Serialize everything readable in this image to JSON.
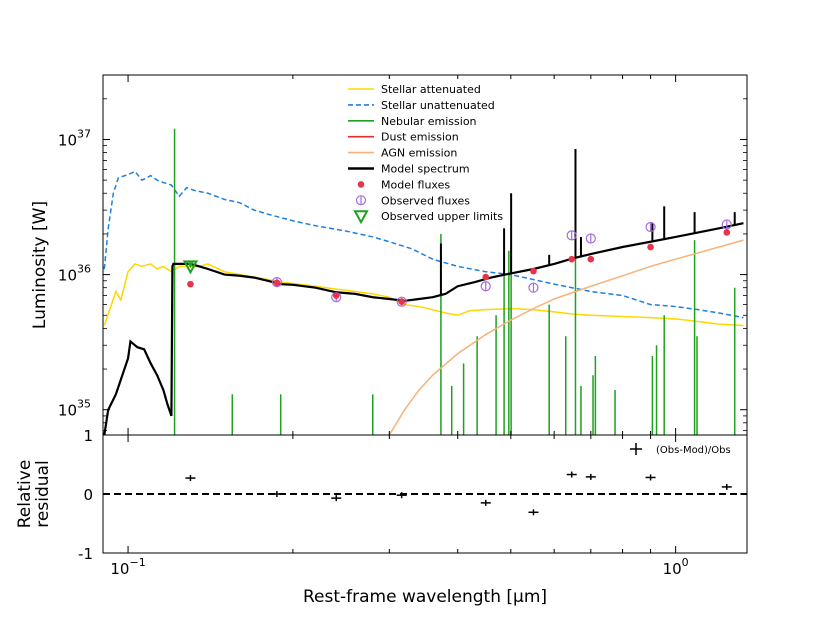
{
  "chart_data": [
    {
      "type": "line",
      "panel": "sed",
      "xscale": "log",
      "yscale": "log",
      "xlim": [
        0.09,
        1.35
      ],
      "ylim": [
        6.5e+34,
        3e+37
      ],
      "ylabel": "Luminosity [W]",
      "yticks": [
        {
          "value": 1e+35,
          "base": "10",
          "exp": "35"
        },
        {
          "value": 1e+36,
          "base": "10",
          "exp": "36"
        },
        {
          "value": 1e+37,
          "base": "10",
          "exp": "37"
        }
      ],
      "legend_position": "top-center",
      "legend": [
        {
          "label": "Stellar attenuated",
          "color": "#ffd700",
          "style": "solid"
        },
        {
          "label": "Stellar unattenuated",
          "color": "#1e7fe0",
          "style": "dashed"
        },
        {
          "label": "Nebular emission",
          "color": "#1fa01f",
          "style": "solid"
        },
        {
          "label": "Dust emission",
          "color": "#e82a2a",
          "style": "solid"
        },
        {
          "label": "AGN emission",
          "color": "#f7b27a",
          "style": "solid"
        },
        {
          "label": "Model spectrum",
          "color": "#000000",
          "style": "solid"
        },
        {
          "label": "Model fluxes",
          "color": "#e8344a",
          "style": "dot"
        },
        {
          "label": "Observed fluxes",
          "color": "#a46cd8",
          "style": "circle"
        },
        {
          "label": "Observed upper limits",
          "color": "#1fa01f",
          "style": "triangle"
        }
      ],
      "series": [
        {
          "name": "Stellar attenuated",
          "color": "#ffd700",
          "x": [
            0.0905,
            0.093,
            0.095,
            0.097,
            0.1,
            0.103,
            0.106,
            0.11,
            0.113,
            0.116,
            0.12,
            0.124,
            0.13,
            0.135,
            0.14,
            0.15,
            0.16,
            0.17,
            0.18,
            0.19,
            0.2,
            0.22,
            0.24,
            0.26,
            0.28,
            0.3,
            0.32,
            0.34,
            0.36,
            0.38,
            0.4,
            0.42,
            0.45,
            0.5,
            0.55,
            0.6,
            0.65,
            0.7,
            0.8,
            0.9,
            1.0,
            1.1,
            1.2,
            1.33
          ],
          "y": [
            4.2e+35,
            5.8e+35,
            7.5e+35,
            6.5e+35,
            1.05e+36,
            1.2e+36,
            1.15e+36,
            1.2e+36,
            1.1e+36,
            1.15e+36,
            1.05e+36,
            1.15e+36,
            1.15e+36,
            1.15e+36,
            1.2e+36,
            1.05e+36,
            1e+36,
            9.6e+35,
            9.2e+35,
            8.8e+35,
            8.6e+35,
            8.2e+35,
            7.8e+35,
            7.5e+35,
            7.2e+35,
            6.8e+35,
            6e+35,
            5.8e+35,
            5.5e+35,
            5.2e+35,
            5e+35,
            5.4e+35,
            5.5e+35,
            5.6e+35,
            5.5e+35,
            5.3e+35,
            5.1e+35,
            5e+35,
            4.9e+35,
            4.8e+35,
            4.7e+35,
            4.5e+35,
            4.3e+35,
            4.2e+35
          ]
        },
        {
          "name": "Stellar unattenuated",
          "color": "#1e7fe0",
          "x": [
            0.0905,
            0.092,
            0.094,
            0.096,
            0.1,
            0.103,
            0.106,
            0.11,
            0.113,
            0.116,
            0.12,
            0.124,
            0.128,
            0.132,
            0.14,
            0.15,
            0.16,
            0.17,
            0.18,
            0.2,
            0.22,
            0.25,
            0.28,
            0.3,
            0.33,
            0.36,
            0.4,
            0.45,
            0.5,
            0.6,
            0.7,
            0.8,
            0.9,
            1.0,
            1.1,
            1.2,
            1.33
          ],
          "y": [
            1.1e+36,
            2.2e+36,
            4e+36,
            5.2e+36,
            5.5e+36,
            5.8e+36,
            5e+36,
            5.4e+36,
            5e+36,
            4.8e+36,
            4.6e+36,
            3.8e+36,
            4.4e+36,
            4.2e+36,
            4e+36,
            3.6e+36,
            3.4e+36,
            3e+36,
            2.8e+36,
            2.5e+36,
            2.3e+36,
            2.1e+36,
            1.9e+36,
            1.75e+36,
            1.55e+36,
            1.3e+36,
            1.15e+36,
            1.05e+36,
            1e+36,
            8.5e+35,
            7.5e+35,
            7e+35,
            6e+35,
            5.8e+35,
            5.5e+35,
            5.2e+35,
            4.8e+35
          ]
        },
        {
          "name": "AGN emission",
          "color": "#f7b27a",
          "x": [
            0.3,
            0.32,
            0.34,
            0.36,
            0.4,
            0.45,
            0.5,
            0.55,
            0.6,
            0.7,
            0.8,
            0.9,
            1.0,
            1.1,
            1.2,
            1.33
          ],
          "y": [
            6.5e+34,
            1e+35,
            1.4e+35,
            1.8e+35,
            2.6e+35,
            3.6e+35,
            4.6e+35,
            5.6e+35,
            6.6e+35,
            8.2e+35,
            9.8e+35,
            1.15e+36,
            1.3e+36,
            1.45e+36,
            1.6e+36,
            1.8e+36
          ]
        },
        {
          "name": "Model spectrum",
          "color": "#000000",
          "x": [
            0.0905,
            0.092,
            0.095,
            0.1,
            0.101,
            0.104,
            0.107,
            0.11,
            0.113,
            0.116,
            0.118,
            0.12,
            0.1205,
            0.121,
            0.124,
            0.13,
            0.135,
            0.14,
            0.15,
            0.16,
            0.17,
            0.18,
            0.19,
            0.2,
            0.22,
            0.24,
            0.26,
            0.28,
            0.3,
            0.32,
            0.34,
            0.36,
            0.38,
            0.4,
            0.43,
            0.46,
            0.5,
            0.55,
            0.6,
            0.65,
            0.7,
            0.8,
            0.9,
            1.0,
            1.1,
            1.2,
            1.33
          ],
          "y": [
            6.5e+34,
            1e+35,
            1.3e+35,
            2.4e+35,
            3.2e+35,
            2.9e+35,
            2.8e+35,
            2.2e+35,
            1.8e+35,
            1.4e+35,
            1.1e+35,
            9e+34,
            1.15e+36,
            1.2e+36,
            1.2e+36,
            1.2e+36,
            1.15e+36,
            1.1e+36,
            1e+36,
            9.8e+35,
            9.5e+35,
            9e+35,
            8.5e+35,
            8.4e+35,
            8e+35,
            7.4e+35,
            7.2e+35,
            6.8e+35,
            6.6e+35,
            6.4e+35,
            6.6e+35,
            6.8e+35,
            7.2e+35,
            8.2e+35,
            8.8e+35,
            9.5e+35,
            1.02e+36,
            1.1e+36,
            1.2e+36,
            1.32e+36,
            1.42e+36,
            1.6e+36,
            1.75e+36,
            1.9e+36,
            2.05e+36,
            2.2e+36,
            2.4e+36
          ]
        }
      ],
      "nebular_lines": [
        {
          "x": 0.1216,
          "y": 1.2e+37
        },
        {
          "x": 0.155,
          "y": 1.3e+35
        },
        {
          "x": 0.19,
          "y": 1.3e+35
        },
        {
          "x": 0.2798,
          "y": 1.3e+35
        },
        {
          "x": 0.3727,
          "y": 2e+36
        },
        {
          "x": 0.39,
          "y": 1.5e+35
        },
        {
          "x": 0.41,
          "y": 2.2e+35
        },
        {
          "x": 0.434,
          "y": 3.5e+35
        },
        {
          "x": 0.47,
          "y": 5e+35
        },
        {
          "x": 0.4861,
          "y": 2e+36
        },
        {
          "x": 0.4959,
          "y": 1.5e+36
        },
        {
          "x": 0.5007,
          "y": 2.5e+36
        },
        {
          "x": 0.5876,
          "y": 6e+35
        },
        {
          "x": 0.63,
          "y": 3.5e+35
        },
        {
          "x": 0.6563,
          "y": 8e+36
        },
        {
          "x": 0.6716,
          "y": 1.5e+35
        },
        {
          "x": 0.7065,
          "y": 1.8e+35
        },
        {
          "x": 0.7136,
          "y": 2.5e+35
        },
        {
          "x": 0.7751,
          "y": 1.4e+35
        },
        {
          "x": 0.9069,
          "y": 2.5e+35
        },
        {
          "x": 0.9229,
          "y": 3e+35
        },
        {
          "x": 0.9531,
          "y": 5e+35
        },
        {
          "x": 1.083,
          "y": 1.8e+36
        },
        {
          "x": 1.094,
          "y": 3.5e+35
        },
        {
          "x": 1.282,
          "y": 8e+35
        }
      ],
      "model_spectrum_lines": [
        {
          "x": 0.3727,
          "y": 1.7e+36
        },
        {
          "x": 0.4861,
          "y": 2.2e+36
        },
        {
          "x": 0.5007,
          "y": 4e+36
        },
        {
          "x": 0.5876,
          "y": 1.4e+36
        },
        {
          "x": 0.6563,
          "y": 8.5e+36
        },
        {
          "x": 0.6716,
          "y": 1.9e+36
        },
        {
          "x": 0.9069,
          "y": 2.4e+36
        },
        {
          "x": 0.9531,
          "y": 3.2e+36
        },
        {
          "x": 1.083,
          "y": 2.9e+36
        },
        {
          "x": 1.282,
          "y": 2.9e+36
        }
      ],
      "model_fluxes": [
        {
          "x": 0.13,
          "y": 8.5e+35
        },
        {
          "x": 0.187,
          "y": 8.7e+35
        },
        {
          "x": 0.24,
          "y": 7e+35
        },
        {
          "x": 0.316,
          "y": 6.3e+35
        },
        {
          "x": 0.45,
          "y": 9.6e+35
        },
        {
          "x": 0.55,
          "y": 1.06e+36
        },
        {
          "x": 0.646,
          "y": 1.3e+36
        },
        {
          "x": 0.7,
          "y": 1.3e+36
        },
        {
          "x": 0.9,
          "y": 1.6e+36
        },
        {
          "x": 1.24,
          "y": 2.05e+36
        }
      ],
      "observed_fluxes": [
        {
          "x": 0.187,
          "y": 8.8e+35
        },
        {
          "x": 0.24,
          "y": 6.8e+35
        },
        {
          "x": 0.316,
          "y": 6.3e+35
        },
        {
          "x": 0.45,
          "y": 8.2e+35
        },
        {
          "x": 0.55,
          "y": 8e+35
        },
        {
          "x": 0.646,
          "y": 1.95e+36
        },
        {
          "x": 0.7,
          "y": 1.85e+36
        },
        {
          "x": 0.9,
          "y": 2.25e+36
        },
        {
          "x": 1.24,
          "y": 2.35e+36
        }
      ],
      "upper_limits": [
        {
          "x": 0.13,
          "y": 1.15e+36
        }
      ]
    },
    {
      "type": "scatter",
      "panel": "residual",
      "xscale": "log",
      "xlim": [
        0.09,
        1.35
      ],
      "ylim": [
        -1,
        1
      ],
      "xlabel": "Rest-frame wavelength [μm]",
      "ylabel": [
        "Relative",
        "residual"
      ],
      "yticks": [
        "-1",
        "0",
        "1"
      ],
      "xticks": [
        {
          "value": 0.1,
          "base": "10",
          "exp": "−1"
        },
        {
          "value": 1.0,
          "base": "10",
          "exp": "0"
        }
      ],
      "legend": [
        {
          "label": "(Obs-Mod)/Obs",
          "marker": "plus",
          "position": "top-right"
        }
      ],
      "zero_line": {
        "value": 0,
        "style": "dashed"
      },
      "points": [
        {
          "x": 0.13,
          "y": 0.27
        },
        {
          "x": 0.187,
          "y": 0.0
        },
        {
          "x": 0.24,
          "y": -0.07
        },
        {
          "x": 0.316,
          "y": -0.02
        },
        {
          "x": 0.45,
          "y": -0.15
        },
        {
          "x": 0.55,
          "y": -0.31
        },
        {
          "x": 0.646,
          "y": 0.33
        },
        {
          "x": 0.7,
          "y": 0.29
        },
        {
          "x": 0.9,
          "y": 0.28
        },
        {
          "x": 1.24,
          "y": 0.12
        }
      ]
    }
  ]
}
